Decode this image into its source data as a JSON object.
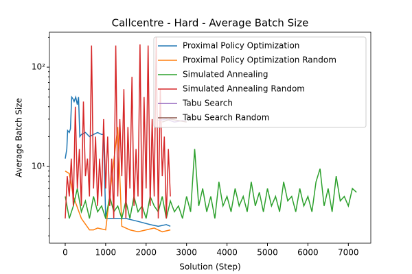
{
  "chart_data": {
    "type": "line",
    "title": "Callcentre - Hard - Average Batch Size",
    "x_label": "Solution (Step)",
    "y_label": "Average Batch Size",
    "xlim": [
      -390,
      7555
    ],
    "xticks": [
      0,
      1000,
      2000,
      3000,
      4000,
      5000,
      6000,
      7000
    ],
    "ylim": [
      1.69,
      225
    ],
    "y_scale": "log",
    "yticks": [
      {
        "value": 10,
        "label": "10¹"
      },
      {
        "value": 100,
        "label": "10²"
      }
    ],
    "yminorticks": [
      2,
      3,
      4,
      5,
      6,
      7,
      8,
      9,
      20,
      30,
      40,
      50,
      60,
      70,
      80,
      90,
      200
    ],
    "legend": "upper right",
    "series": [
      {
        "name": "Proximal Policy Optimization",
        "color": "#1f77b4",
        "x": [
          0,
          40,
          60,
          100,
          130,
          160,
          190,
          220,
          260,
          300,
          330,
          360,
          400,
          500,
          600,
          700,
          800,
          900,
          950,
          1000,
          1200,
          1500,
          1800,
          2100,
          2300,
          2500,
          2600
        ],
        "values": [
          12,
          15,
          23,
          22,
          24,
          50,
          48,
          45,
          50,
          42,
          50,
          20,
          21,
          22,
          20,
          21,
          22,
          21,
          21,
          3,
          3,
          3,
          2.8,
          2.6,
          2.5,
          2.6,
          2.5
        ]
      },
      {
        "name": "Proximal Policy Optimization Random",
        "color": "#ff7f0e",
        "x": [
          0,
          100,
          200,
          400,
          600,
          700,
          800,
          1000,
          1300,
          1400,
          1600,
          1800,
          2000,
          2200,
          2400,
          2600
        ],
        "values": [
          9,
          8.5,
          5,
          3,
          2.3,
          2.3,
          2.4,
          2.3,
          25,
          2.5,
          2.3,
          2.2,
          2.3,
          2.4,
          2.2,
          2.3
        ]
      },
      {
        "name": "Simulated Annealing",
        "color": "#2ca02c",
        "x": [
          0,
          100,
          200,
          300,
          400,
          500,
          600,
          700,
          800,
          900,
          1000,
          1100,
          1200,
          1300,
          1400,
          1500,
          1600,
          1700,
          1800,
          1900,
          2000,
          2100,
          2200,
          2300,
          2400,
          2500,
          2600,
          2700,
          2800,
          2900,
          3000,
          3100,
          3200,
          3300,
          3400,
          3500,
          3600,
          3700,
          3800,
          3900,
          4000,
          4100,
          4200,
          4300,
          4400,
          4500,
          4600,
          4700,
          4800,
          4900,
          5000,
          5100,
          5200,
          5300,
          5400,
          5500,
          5600,
          5700,
          5800,
          5900,
          6000,
          6100,
          6200,
          6300,
          6400,
          6500,
          6600,
          6700,
          6800,
          6900,
          7000,
          7100,
          7200
        ],
        "values": [
          5,
          3,
          4,
          6,
          3.5,
          4.5,
          3,
          5,
          3.5,
          4,
          3,
          5,
          3.5,
          4,
          3,
          4.5,
          3,
          5,
          3.5,
          4,
          3,
          5,
          4,
          3.5,
          5,
          3,
          4.5,
          3.5,
          4,
          3,
          5,
          3.5,
          15,
          4,
          6,
          3.5,
          5,
          3,
          7,
          4,
          5,
          3.5,
          6,
          4,
          5,
          3.5,
          7,
          4,
          5.5,
          3.5,
          6,
          4,
          5,
          3.5,
          7,
          4.5,
          5,
          3.5,
          6,
          4,
          5,
          3.5,
          7,
          9.5,
          4,
          6,
          3.5,
          8,
          4.5,
          5,
          4,
          6,
          5.5
        ]
      },
      {
        "name": "Simulated Annealing Random",
        "color": "#d62728",
        "x": [
          0,
          50,
          100,
          150,
          200,
          250,
          300,
          350,
          400,
          450,
          500,
          550,
          600,
          650,
          700,
          750,
          800,
          850,
          900,
          950,
          1000,
          1050,
          1100,
          1150,
          1200,
          1250,
          1300,
          1350,
          1400,
          1450,
          1500,
          1550,
          1600,
          1650,
          1700,
          1750,
          1800,
          1850,
          1900,
          1950,
          2000,
          2050,
          2100,
          2150,
          2200,
          2250,
          2300,
          2350,
          2400,
          2450,
          2500,
          2550,
          2600
        ],
        "values": [
          3,
          8,
          5,
          12,
          4,
          40,
          6,
          15,
          4,
          45,
          8,
          12,
          5,
          165,
          6,
          20,
          4,
          12,
          5,
          30,
          6,
          20,
          4,
          12,
          3,
          165,
          5,
          30,
          8,
          60,
          3,
          25,
          6,
          80,
          4,
          15,
          5,
          170,
          3,
          50,
          6,
          165,
          4,
          30,
          5,
          200,
          3,
          60,
          8,
          20,
          3,
          15,
          5
        ]
      },
      {
        "name": "Tabu Search",
        "color": "#9467bd",
        "x": [
          2300,
          2500,
          2700,
          2900,
          3000
        ],
        "values": [
          29,
          30,
          28,
          29,
          28
        ]
      },
      {
        "name": "Tabu Search Random",
        "color": "#8c564b",
        "x": [
          2400,
          2600,
          2800,
          3000
        ],
        "values": [
          28,
          30,
          29,
          28
        ]
      }
    ]
  }
}
